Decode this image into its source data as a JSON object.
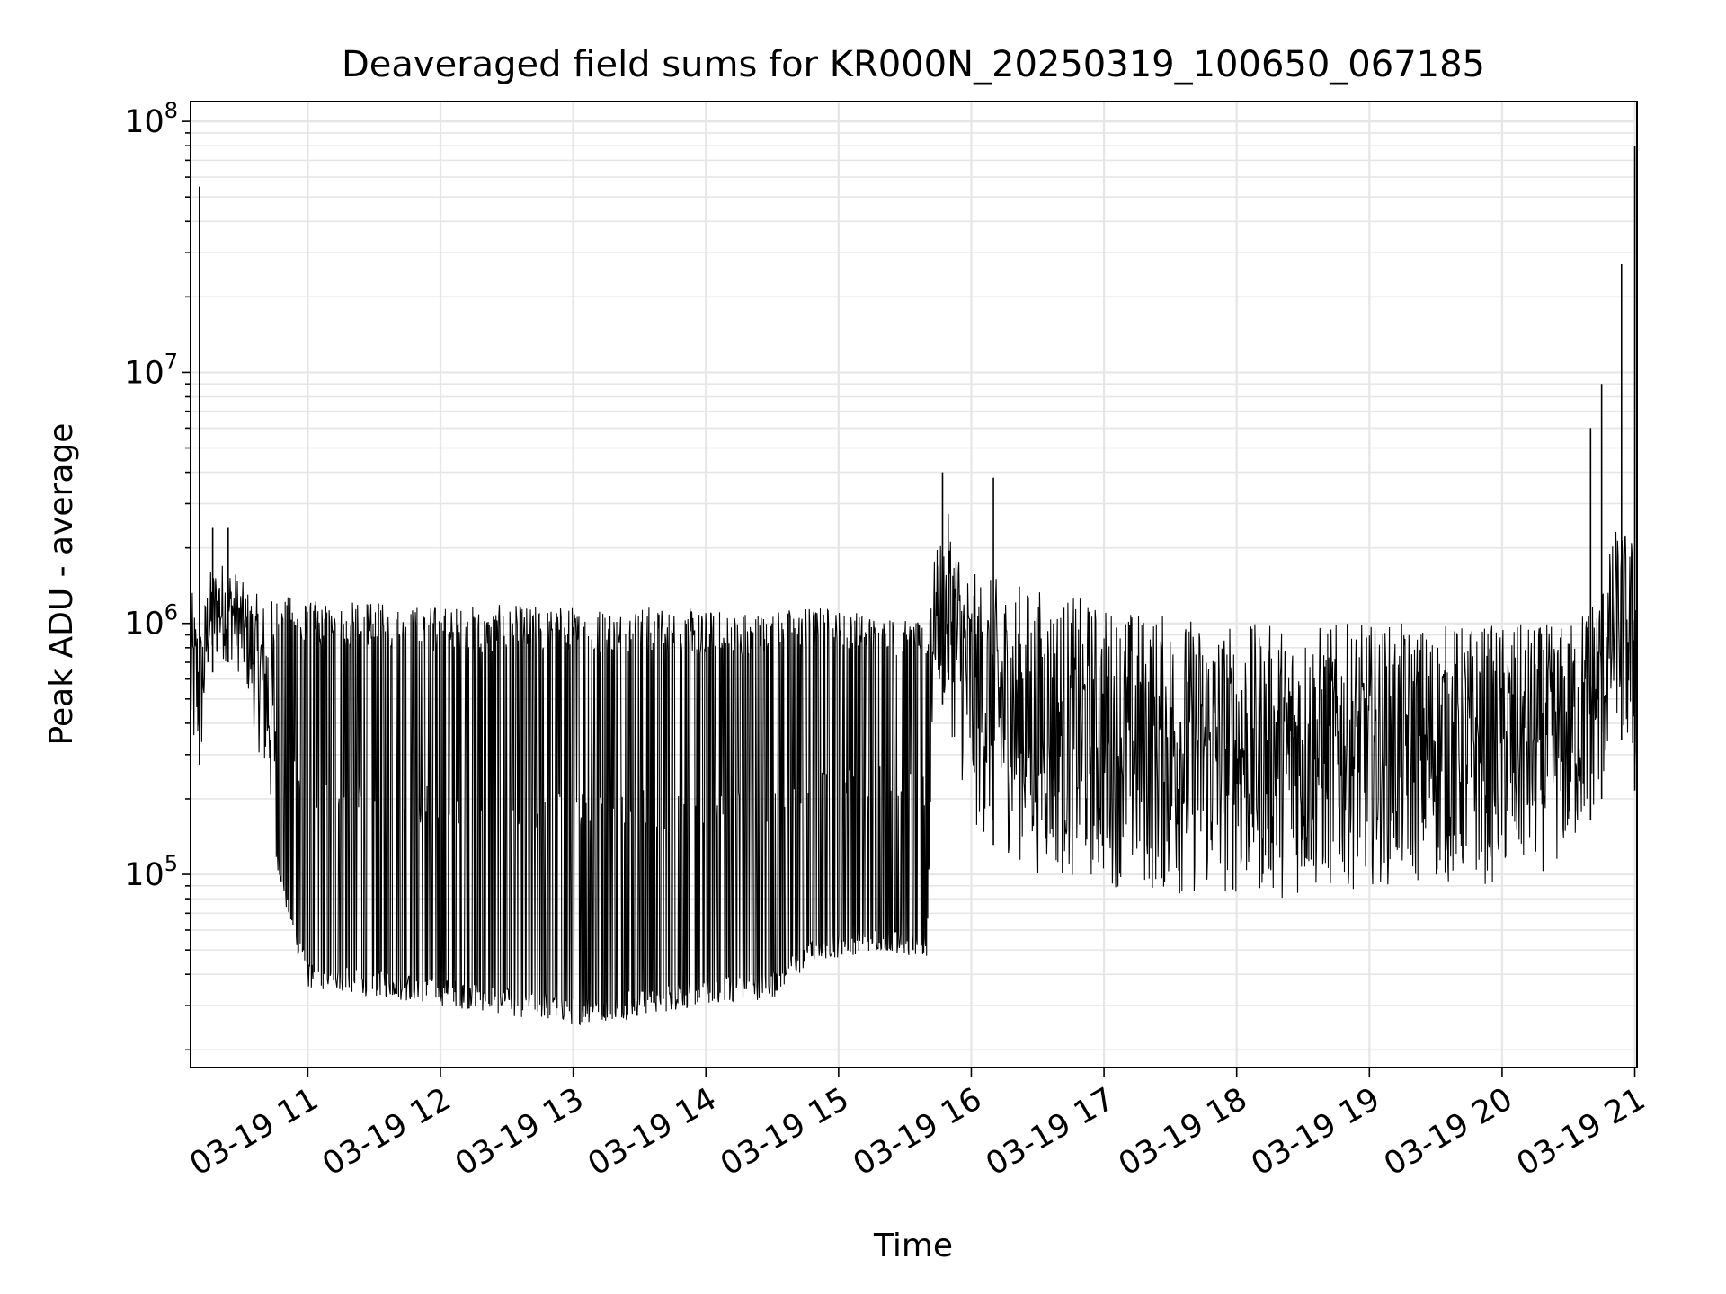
{
  "chart_data": {
    "type": "line",
    "title": "Deaveraged field sums for KR000N_20250319_100650_067185",
    "xlabel": "Time",
    "ylabel": "Peak ADU - average",
    "x_range": [
      "03-19 10:07",
      "03-19 21:01"
    ],
    "ylim": [
      17000,
      120000000
    ],
    "yscale": "log",
    "grid": "major and minor",
    "legend": "none",
    "x_ticks": [
      "03-19 11",
      "03-19 12",
      "03-19 13",
      "03-19 14",
      "03-19 15",
      "03-19 16",
      "03-19 17",
      "03-19 18",
      "03-19 19",
      "03-19 20",
      "03-19 21"
    ],
    "y_ticks": [
      {
        "base": "10",
        "exp": "5",
        "value": 100000
      },
      {
        "base": "10",
        "exp": "6",
        "value": 1000000
      },
      {
        "base": "10",
        "exp": "7",
        "value": 10000000
      },
      {
        "base": "10",
        "exp": "8",
        "value": 100000000
      }
    ],
    "series": [
      {
        "color": "#000000",
        "envelope": [
          {
            "t": "03-19 10:07",
            "low": 250000,
            "high": 1400000
          },
          {
            "t": "03-19 10:12",
            "low": 280000,
            "high": 1000000
          },
          {
            "t": "03-19 10:15",
            "low": 600000,
            "high": 1600000
          },
          {
            "t": "03-19 10:20",
            "low": 700000,
            "high": 1800000
          },
          {
            "t": "03-19 10:26",
            "low": 700000,
            "high": 1700000
          },
          {
            "t": "03-19 10:32",
            "low": 550000,
            "high": 1400000
          },
          {
            "t": "03-19 10:38",
            "low": 300000,
            "high": 1300000
          },
          {
            "t": "03-19 10:45",
            "low": 120000,
            "high": 1300000
          },
          {
            "t": "03-19 10:52",
            "low": 60000,
            "high": 1300000
          },
          {
            "t": "03-19 11:00",
            "low": 35000,
            "high": 1250000
          },
          {
            "t": "03-19 12:00",
            "low": 30000,
            "high": 1200000
          },
          {
            "t": "03-19 13:00",
            "low": 25000,
            "high": 1200000
          },
          {
            "t": "03-19 13:30",
            "low": 27000,
            "high": 1200000
          },
          {
            "t": "03-19 14:00",
            "low": 30000,
            "high": 1150000
          },
          {
            "t": "03-19 14:30",
            "low": 32000,
            "high": 1150000
          },
          {
            "t": "03-19 14:50",
            "low": 45000,
            "high": 1200000
          },
          {
            "t": "03-19 15:20",
            "low": 50000,
            "high": 1100000
          },
          {
            "t": "03-19 15:40",
            "low": 45000,
            "high": 1000000
          },
          {
            "t": "03-19 15:43",
            "low": 600000,
            "high": 1800000
          },
          {
            "t": "03-19 15:50",
            "low": 400000,
            "high": 2800000
          },
          {
            "t": "03-19 16:00",
            "low": 150000,
            "high": 1600000
          },
          {
            "t": "03-19 16:30",
            "low": 100000,
            "high": 1400000
          },
          {
            "t": "03-19 17:00",
            "low": 90000,
            "high": 1200000
          },
          {
            "t": "03-19 17:30",
            "low": 80000,
            "high": 1100000
          },
          {
            "t": "03-19 18:00",
            "low": 80000,
            "high": 1000000
          },
          {
            "t": "03-19 18:30",
            "low": 80000,
            "high": 1000000
          },
          {
            "t": "03-19 19:00",
            "low": 90000,
            "high": 1000000
          },
          {
            "t": "03-19 19:30",
            "low": 90000,
            "high": 1000000
          },
          {
            "t": "03-19 20:00",
            "low": 90000,
            "high": 1000000
          },
          {
            "t": "03-19 20:30",
            "low": 110000,
            "high": 1000000
          },
          {
            "t": "03-19 20:45",
            "low": 200000,
            "high": 1500000
          },
          {
            "t": "03-19 20:52",
            "low": 400000,
            "high": 2500000
          },
          {
            "t": "03-19 21:01",
            "low": 200000,
            "high": 2200000
          }
        ],
        "spikes": [
          {
            "t": "03-19 10:11",
            "value": 55000000
          },
          {
            "t": "03-19 10:17",
            "value": 2400000
          },
          {
            "t": "03-19 10:24",
            "value": 2400000
          },
          {
            "t": "03-19 15:47",
            "value": 4000000
          },
          {
            "t": "03-19 16:10",
            "value": 3800000
          },
          {
            "t": "03-19 20:40",
            "value": 6000000
          },
          {
            "t": "03-19 20:45",
            "value": 9000000
          },
          {
            "t": "03-19 20:54",
            "value": 27000000
          },
          {
            "t": "03-19 21:00",
            "value": 80000000
          }
        ]
      }
    ]
  }
}
